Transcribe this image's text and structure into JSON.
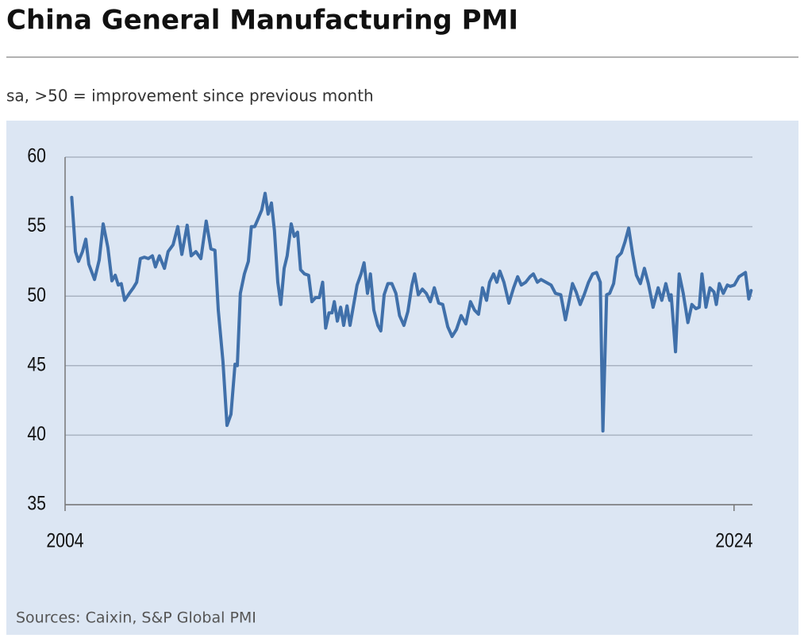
{
  "chart_data": {
    "type": "line",
    "title": "China General Manufacturing PMI",
    "subtitle": "sa, >50 = improvement since previous month",
    "source": "Sources: Caixin, S&P Global PMI",
    "color": "#4070aa",
    "grid": true,
    "xlim": [
      2004,
      2024.55
    ],
    "xticks": [
      2004,
      2024
    ],
    "ylim": [
      35,
      60
    ],
    "yticks": [
      35,
      40,
      45,
      50,
      55,
      60
    ],
    "x": [
      2004.2,
      2004.31,
      2004.4,
      2004.52,
      2004.62,
      2004.71,
      2004.88,
      2005.02,
      2005.14,
      2005.28,
      2005.4,
      2005.5,
      2005.59,
      2005.68,
      2005.78,
      2005.92,
      2006.04,
      2006.14,
      2006.25,
      2006.37,
      2006.49,
      2006.61,
      2006.7,
      2006.82,
      2006.97,
      2007.08,
      2007.23,
      2007.37,
      2007.49,
      2007.65,
      2007.77,
      2007.91,
      2008.06,
      2008.22,
      2008.36,
      2008.48,
      2008.58,
      2008.72,
      2008.84,
      2008.96,
      2009.08,
      2009.15,
      2009.24,
      2009.36,
      2009.48,
      2009.57,
      2009.67,
      2009.76,
      2009.88,
      2009.98,
      2010.07,
      2010.17,
      2010.26,
      2010.36,
      2010.45,
      2010.55,
      2010.64,
      2010.76,
      2010.85,
      2010.95,
      2011.04,
      2011.16,
      2011.28,
      2011.38,
      2011.49,
      2011.6,
      2011.7,
      2011.79,
      2011.89,
      2011.98,
      2012.05,
      2012.14,
      2012.24,
      2012.33,
      2012.43,
      2012.52,
      2012.62,
      2012.73,
      2012.85,
      2012.94,
      2013.04,
      2013.13,
      2013.23,
      2013.35,
      2013.44,
      2013.54,
      2013.65,
      2013.77,
      2013.89,
      2014.0,
      2014.13,
      2014.25,
      2014.37,
      2014.45,
      2014.56,
      2014.68,
      2014.8,
      2014.92,
      2015.04,
      2015.17,
      2015.29,
      2015.44,
      2015.57,
      2015.7,
      2015.84,
      2015.98,
      2016.12,
      2016.24,
      2016.36,
      2016.48,
      2016.6,
      2016.69,
      2016.81,
      2016.91,
      2017.0,
      2017.12,
      2017.27,
      2017.41,
      2017.53,
      2017.64,
      2017.77,
      2017.9,
      2018.0,
      2018.12,
      2018.23,
      2018.38,
      2018.53,
      2018.66,
      2018.82,
      2018.96,
      2019.05,
      2019.17,
      2019.28,
      2019.4,
      2019.52,
      2019.65,
      2019.77,
      2019.89,
      2020.0,
      2020.08,
      2020.19,
      2020.28,
      2020.4,
      2020.51,
      2020.63,
      2020.74,
      2020.85,
      2020.97,
      2021.08,
      2021.2,
      2021.32,
      2021.44,
      2021.58,
      2021.73,
      2021.84,
      2021.96,
      2022.08,
      2022.12,
      2022.25,
      2022.36,
      2022.48,
      2022.62,
      2022.74,
      2022.86,
      2022.96,
      2023.04,
      2023.16,
      2023.28,
      2023.4,
      2023.47,
      2023.56,
      2023.68,
      2023.8,
      2023.89,
      2024.01,
      2024.15,
      2024.34,
      2024.44,
      2024.51
    ],
    "values": [
      57.1,
      53.2,
      52.5,
      53.2,
      54.1,
      52.3,
      51.2,
      52.6,
      55.2,
      53.5,
      51.1,
      51.5,
      50.8,
      50.9,
      49.7,
      50.2,
      50.6,
      51.0,
      52.7,
      52.8,
      52.7,
      52.9,
      52.1,
      52.9,
      52.0,
      53.2,
      53.7,
      55.0,
      53.0,
      55.1,
      52.9,
      53.2,
      52.7,
      55.4,
      53.4,
      53.3,
      49.0,
      45.3,
      40.7,
      41.5,
      45.1,
      45.0,
      50.2,
      51.6,
      52.5,
      55.0,
      55.0,
      55.5,
      56.2,
      57.4,
      55.9,
      56.7,
      54.7,
      51.0,
      49.4,
      52.0,
      52.9,
      55.2,
      54.3,
      54.6,
      51.9,
      51.6,
      51.5,
      49.6,
      49.9,
      49.9,
      51.0,
      47.7,
      48.8,
      48.8,
      49.6,
      48.2,
      49.2,
      47.9,
      49.3,
      47.9,
      49.3,
      50.8,
      51.6,
      52.4,
      50.2,
      51.6,
      49.0,
      47.9,
      47.5,
      50.1,
      50.9,
      50.9,
      50.2,
      48.6,
      47.9,
      48.9,
      50.8,
      51.6,
      50.1,
      50.5,
      50.2,
      49.6,
      50.6,
      49.5,
      49.4,
      47.8,
      47.1,
      47.6,
      48.6,
      48.0,
      49.6,
      49.0,
      48.7,
      50.6,
      49.7,
      51.0,
      51.6,
      51.0,
      51.8,
      51.0,
      49.5,
      50.6,
      51.4,
      50.8,
      51.0,
      51.4,
      51.6,
      51.0,
      51.2,
      51.0,
      50.8,
      50.2,
      50.1,
      48.3,
      49.4,
      50.9,
      50.3,
      49.4,
      50.1,
      51.0,
      51.6,
      51.7,
      51.0,
      40.3,
      50.1,
      50.2,
      50.9,
      52.8,
      53.1,
      53.9,
      54.9,
      53.0,
      51.5,
      50.9,
      52.0,
      50.9,
      49.2,
      50.6,
      49.7,
      50.9,
      49.7,
      50.1,
      46.0,
      51.6,
      50.2,
      48.1,
      49.4,
      49.1,
      49.2,
      51.6,
      49.2,
      50.6,
      50.3,
      49.4,
      50.9,
      50.2,
      50.8,
      50.7,
      50.8,
      51.4,
      51.7,
      49.8,
      50.4
    ]
  }
}
